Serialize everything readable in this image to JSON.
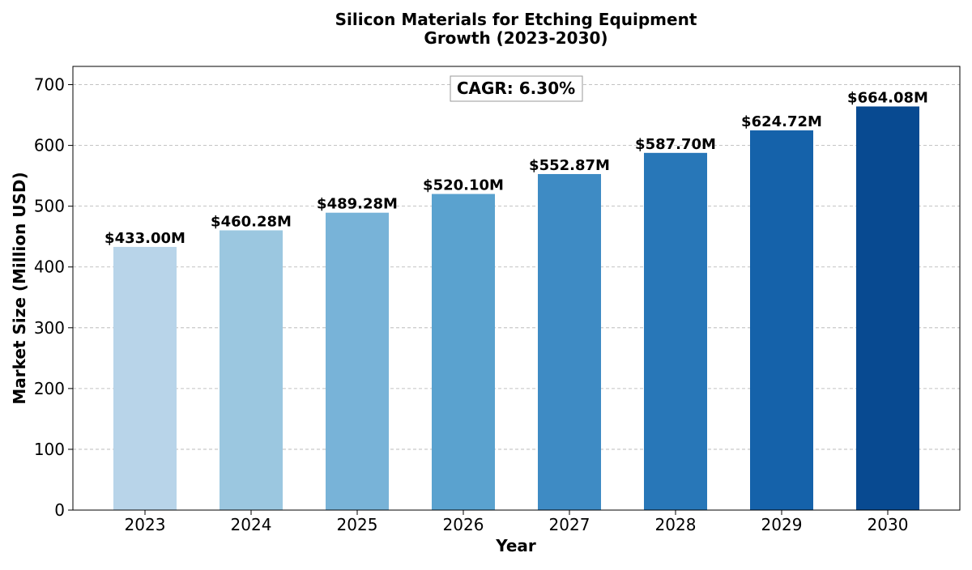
{
  "chart_data": {
    "type": "bar",
    "title_lines": [
      "Silicon Materials for Etching Equipment",
      "Growth (2023-2030)"
    ],
    "xlabel": "Year",
    "ylabel": "Market Size (Million USD)",
    "categories": [
      "2023",
      "2024",
      "2025",
      "2026",
      "2027",
      "2028",
      "2029",
      "2030"
    ],
    "values": [
      433.0,
      460.28,
      489.28,
      520.1,
      552.87,
      587.7,
      624.72,
      664.08
    ],
    "data_labels": [
      "$433.00M",
      "$460.28M",
      "$489.28M",
      "$520.10M",
      "$552.87M",
      "$587.70M",
      "$624.72M",
      "$664.08M"
    ],
    "bar_colors": [
      "#b8d4e9",
      "#9bc7e0",
      "#78b3d8",
      "#5aa2cf",
      "#3e8bc4",
      "#2877b8",
      "#1562aa",
      "#084a91"
    ],
    "ylim": [
      0,
      730
    ],
    "yticks": [
      0,
      100,
      200,
      300,
      400,
      500,
      600,
      700
    ],
    "grid": true,
    "annotation": "CAGR: 6.30%"
  }
}
